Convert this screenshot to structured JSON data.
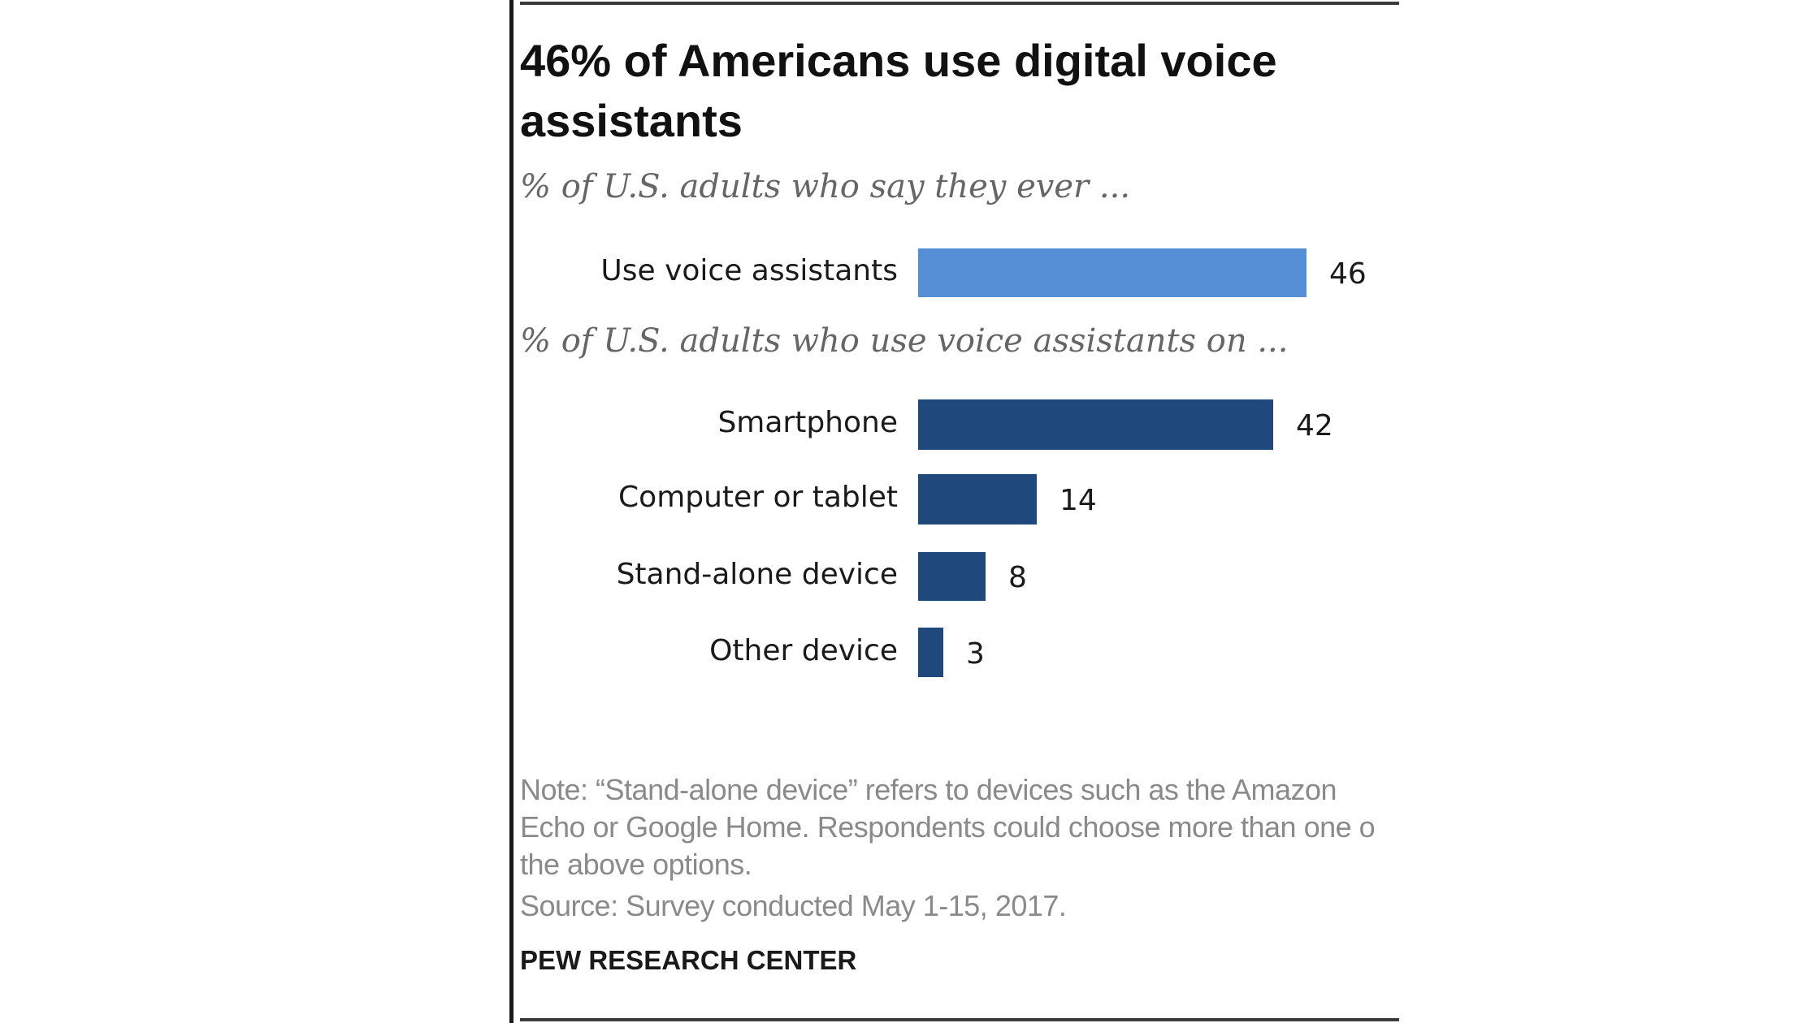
{
  "chart_data": {
    "type": "bar",
    "orientation": "horizontal",
    "title": "46% of Americans use digital voice assistants",
    "groups": [
      {
        "subtitle": "% of U.S. adults who say they ever ...",
        "color": "#558ed5",
        "categories": [
          "Use voice assistants"
        ],
        "values": [
          46
        ]
      },
      {
        "subtitle": "% of U.S. adults who use voice assistants on ...",
        "color": "#1f497d",
        "categories": [
          "Smartphone",
          "Computer or tablet",
          "Stand-alone device",
          "Other device"
        ],
        "values": [
          42,
          14,
          8,
          3
        ]
      }
    ],
    "xlim": [
      0,
      100
    ],
    "grid": false,
    "legend": "none"
  },
  "note": "Note: “Stand-alone device” refers to devices such as the Amazon Echo or Google Home. Respondents could choose more than one o the above options.",
  "source": "Source: Survey conducted May 1-15, 2017.",
  "brand": "PEW RESEARCH CENTER"
}
